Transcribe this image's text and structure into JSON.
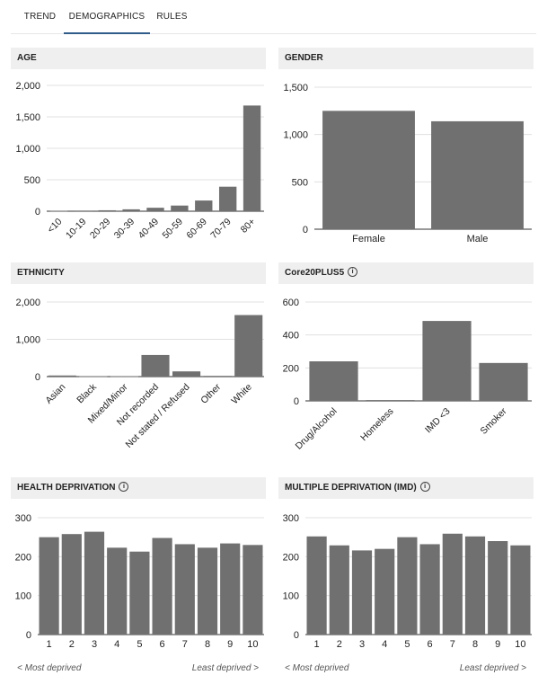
{
  "tabs": [
    {
      "label": "TREND"
    },
    {
      "label": "DEMOGRAPHICS",
      "active": true
    },
    {
      "label": "RULES"
    }
  ],
  "colors": {
    "bar": "#707070",
    "grid": "#e0e0e0",
    "axis": "#333333",
    "header_bg": "#efefef",
    "tab_active": "#2f5c8a"
  },
  "footnotes": {
    "most": "< Most deprived",
    "least": "Least deprived >"
  },
  "chart_data": [
    {
      "id": "age",
      "type": "bar",
      "title": "AGE",
      "info": false,
      "categories": [
        "<10",
        "10-19",
        "20-29",
        "30-39",
        "40-49",
        "50-59",
        "60-69",
        "70-79",
        "80+"
      ],
      "values": [
        8,
        10,
        15,
        30,
        55,
        90,
        170,
        390,
        1680
      ],
      "ymax": 2000,
      "yticks": [
        0,
        500,
        1000,
        1500,
        2000
      ],
      "ytick_labels": [
        "0",
        "500",
        "1,000",
        "1,500",
        "2,000"
      ],
      "rotate": true
    },
    {
      "id": "gender",
      "type": "bar",
      "title": "GENDER",
      "info": false,
      "categories": [
        "Female",
        "Male"
      ],
      "values": [
        1250,
        1140
      ],
      "ymax": 1500,
      "yticks": [
        0,
        500,
        1000,
        1500
      ],
      "ytick_labels": [
        "0",
        "500",
        "1,000",
        "1,500"
      ],
      "rotate": false
    },
    {
      "id": "ethnicity",
      "type": "bar",
      "title": "ETHNICITY",
      "info": false,
      "categories": [
        "Asian",
        "Black",
        "Mixed/Minor",
        "Not recorded",
        "Not stated / Refused",
        "Other",
        "White"
      ],
      "values": [
        30,
        10,
        10,
        580,
        140,
        20,
        1650
      ],
      "ymax": 2000,
      "yticks": [
        0,
        1000,
        2000
      ],
      "ytick_labels": [
        "0",
        "1,000",
        "2,000"
      ],
      "rotate": true
    },
    {
      "id": "core20",
      "type": "bar",
      "title": "Core20PLUS5",
      "info": true,
      "categories": [
        "Drug/Alcohol",
        "Homeless",
        "IMD <3",
        "Smoker"
      ],
      "values": [
        240,
        5,
        485,
        230
      ],
      "ymax": 600,
      "yticks": [
        0,
        200,
        400,
        600
      ],
      "ytick_labels": [
        "0",
        "200",
        "400",
        "600"
      ],
      "rotate": true
    },
    {
      "id": "health",
      "type": "bar",
      "title": "HEALTH DEPRIVATION",
      "info": true,
      "categories": [
        "1",
        "2",
        "3",
        "4",
        "5",
        "6",
        "7",
        "8",
        "9",
        "10"
      ],
      "values": [
        250,
        258,
        264,
        223,
        213,
        248,
        232,
        223,
        234,
        230
      ],
      "ymax": 300,
      "yticks": [
        0,
        100,
        200,
        300
      ],
      "ytick_labels": [
        "0",
        "100",
        "200",
        "300"
      ],
      "rotate": false
    },
    {
      "id": "imd",
      "type": "bar",
      "title": "MULTIPLE DEPRIVATION (IMD)",
      "info": true,
      "categories": [
        "1",
        "2",
        "3",
        "4",
        "5",
        "6",
        "7",
        "8",
        "9",
        "10"
      ],
      "values": [
        252,
        229,
        216,
        220,
        250,
        232,
        259,
        252,
        240,
        229
      ],
      "ymax": 300,
      "yticks": [
        0,
        100,
        200,
        300
      ],
      "ytick_labels": [
        "0",
        "100",
        "200",
        "300"
      ],
      "rotate": false
    }
  ]
}
